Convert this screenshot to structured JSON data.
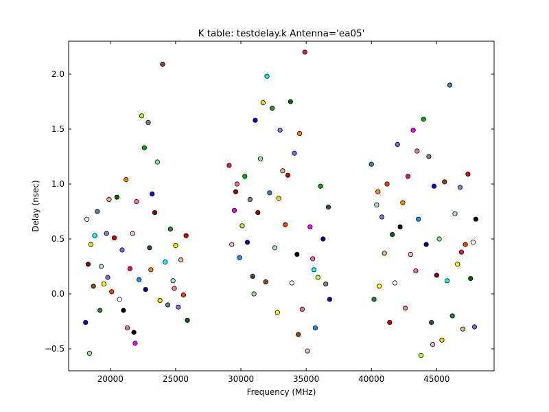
{
  "chart_data": {
    "type": "scatter",
    "title": "K table: testdelay.k       Antenna='ea05'",
    "xlabel": "Frequency (MHz)",
    "ylabel": "Delay (nsec)",
    "xlim": [
      16800,
      49400
    ],
    "ylim": [
      -0.7,
      2.3
    ],
    "xticks": [
      20000,
      25000,
      30000,
      35000,
      40000,
      45000
    ],
    "yticks": [
      -0.5,
      0.0,
      0.5,
      1.0,
      1.5,
      2.0
    ],
    "xtick_labels": [
      "20000",
      "25000",
      "30000",
      "35000",
      "40000",
      "45000"
    ],
    "ytick_labels": [
      "−0.5",
      "0.0",
      "0.5",
      "1.0",
      "1.5",
      "2.0"
    ],
    "grid": false,
    "legend": "none",
    "marker_edge_color": "#000000",
    "palette": [
      "#0000cc",
      "#cc0000",
      "#00aa00",
      "#ffff00",
      "#ff00ff",
      "#00ffff",
      "#ff8c00",
      "#8b0000",
      "#006400",
      "#00008b",
      "#9370db",
      "#ff69b4",
      "#4682b4",
      "#f08080",
      "#90ee90",
      "#ffffff",
      "#808080",
      "#deb887",
      "#1e90ff",
      "#228b22",
      "#e6194b",
      "#ffd700",
      "#7b68ee",
      "#2f4f4f",
      "#ff4500",
      "#adff2f",
      "#add8e6",
      "#ffb6c1",
      "#8b4513",
      "#000000"
    ],
    "points": [
      [
        18100,
        -0.26
      ],
      [
        18300,
        0.27
      ],
      [
        18400,
        -0.54
      ],
      [
        18500,
        0.45
      ],
      [
        18700,
        0.07
      ],
      [
        18800,
        0.53
      ],
      [
        19000,
        0.75
      ],
      [
        19200,
        -0.15
      ],
      [
        19300,
        0.25
      ],
      [
        19500,
        0.09
      ],
      [
        19700,
        0.55
      ],
      [
        19900,
        0.86
      ],
      [
        20100,
        0.02
      ],
      [
        20300,
        0.51
      ],
      [
        20500,
        0.88
      ],
      [
        20700,
        -0.05
      ],
      [
        20900,
        0.4
      ],
      [
        21000,
        -0.15
      ],
      [
        21200,
        1.04
      ],
      [
        21300,
        -0.31
      ],
      [
        21500,
        0.23
      ],
      [
        21700,
        0.55
      ],
      [
        21900,
        -0.45
      ],
      [
        22000,
        0.84
      ],
      [
        22200,
        0.13
      ],
      [
        22400,
        1.62
      ],
      [
        22600,
        1.33
      ],
      [
        22700,
        0.04
      ],
      [
        22900,
        1.56
      ],
      [
        23000,
        0.42
      ],
      [
        23200,
        0.91
      ],
      [
        23400,
        0.74
      ],
      [
        23600,
        1.2
      ],
      [
        23800,
        -0.06
      ],
      [
        24000,
        2.09
      ],
      [
        24200,
        0.29
      ],
      [
        24400,
        -0.1
      ],
      [
        24600,
        0.59
      ],
      [
        24800,
        0.12
      ],
      [
        25000,
        0.44
      ],
      [
        25200,
        -0.12
      ],
      [
        25400,
        0.31
      ],
      [
        25600,
        -0.01
      ],
      [
        25800,
        0.53
      ],
      [
        25900,
        -0.24
      ],
      [
        18200,
        0.68
      ],
      [
        19800,
        0.15
      ],
      [
        21800,
        -0.35
      ],
      [
        23100,
        0.22
      ],
      [
        24900,
        0.05
      ],
      [
        29100,
        1.17
      ],
      [
        29300,
        0.45
      ],
      [
        29500,
        0.76
      ],
      [
        29700,
        1.0
      ],
      [
        29900,
        0.33
      ],
      [
        30100,
        0.62
      ],
      [
        30300,
        1.07
      ],
      [
        30500,
        0.47
      ],
      [
        30700,
        0.86
      ],
      [
        30900,
        0.16
      ],
      [
        31100,
        1.58
      ],
      [
        31300,
        0.74
      ],
      [
        31500,
        1.23
      ],
      [
        31700,
        1.74
      ],
      [
        31900,
        0.11
      ],
      [
        32000,
        1.98
      ],
      [
        32200,
        0.92
      ],
      [
        32400,
        1.69
      ],
      [
        32600,
        0.42
      ],
      [
        32800,
        -0.17
      ],
      [
        33000,
        1.49
      ],
      [
        33200,
        1.12
      ],
      [
        33400,
        0.63
      ],
      [
        33600,
        1.08
      ],
      [
        33800,
        1.75
      ],
      [
        33900,
        0.1
      ],
      [
        34100,
        1.28
      ],
      [
        34300,
        0.36
      ],
      [
        34500,
        1.46
      ],
      [
        34700,
        -0.14
      ],
      [
        34900,
        2.2
      ],
      [
        35100,
        -0.52
      ],
      [
        35300,
        0.61
      ],
      [
        35500,
        0.32
      ],
      [
        35700,
        -0.31
      ],
      [
        35900,
        0.15
      ],
      [
        36100,
        0.98
      ],
      [
        36300,
        0.5
      ],
      [
        36500,
        0.09
      ],
      [
        36700,
        0.79
      ],
      [
        36800,
        -0.05
      ],
      [
        29600,
        0.93
      ],
      [
        31000,
        0.0
      ],
      [
        32900,
        0.87
      ],
      [
        34400,
        -0.37
      ],
      [
        35600,
        0.22
      ],
      [
        40000,
        1.18
      ],
      [
        40200,
        -0.05
      ],
      [
        40400,
        0.81
      ],
      [
        40600,
        0.07
      ],
      [
        40800,
        0.7
      ],
      [
        41000,
        0.37
      ],
      [
        41200,
        1.0
      ],
      [
        41400,
        -0.26
      ],
      [
        41600,
        0.54
      ],
      [
        41800,
        0.1
      ],
      [
        42000,
        1.36
      ],
      [
        42200,
        0.61
      ],
      [
        42400,
        0.83
      ],
      [
        42600,
        -0.13
      ],
      [
        42800,
        1.07
      ],
      [
        43000,
        0.36
      ],
      [
        43200,
        1.49
      ],
      [
        43400,
        0.21
      ],
      [
        43600,
        0.68
      ],
      [
        43800,
        -0.56
      ],
      [
        44000,
        1.59
      ],
      [
        44200,
        0.45
      ],
      [
        44400,
        1.25
      ],
      [
        44600,
        -0.26
      ],
      [
        44800,
        0.98
      ],
      [
        45000,
        0.17
      ],
      [
        45200,
        0.5
      ],
      [
        45400,
        -0.42
      ],
      [
        45600,
        1.02
      ],
      [
        45800,
        0.12
      ],
      [
        46000,
        1.9
      ],
      [
        46200,
        -0.2
      ],
      [
        46400,
        0.73
      ],
      [
        46600,
        0.27
      ],
      [
        46800,
        0.97
      ],
      [
        47000,
        -0.32
      ],
      [
        47200,
        0.45
      ],
      [
        47400,
        1.09
      ],
      [
        47600,
        0.14
      ],
      [
        47800,
        0.47
      ],
      [
        47900,
        -0.3
      ],
      [
        48000,
        0.68
      ],
      [
        40500,
        0.93
      ],
      [
        43500,
        1.3
      ],
      [
        46900,
        0.38
      ],
      [
        44700,
        -0.46
      ]
    ]
  }
}
